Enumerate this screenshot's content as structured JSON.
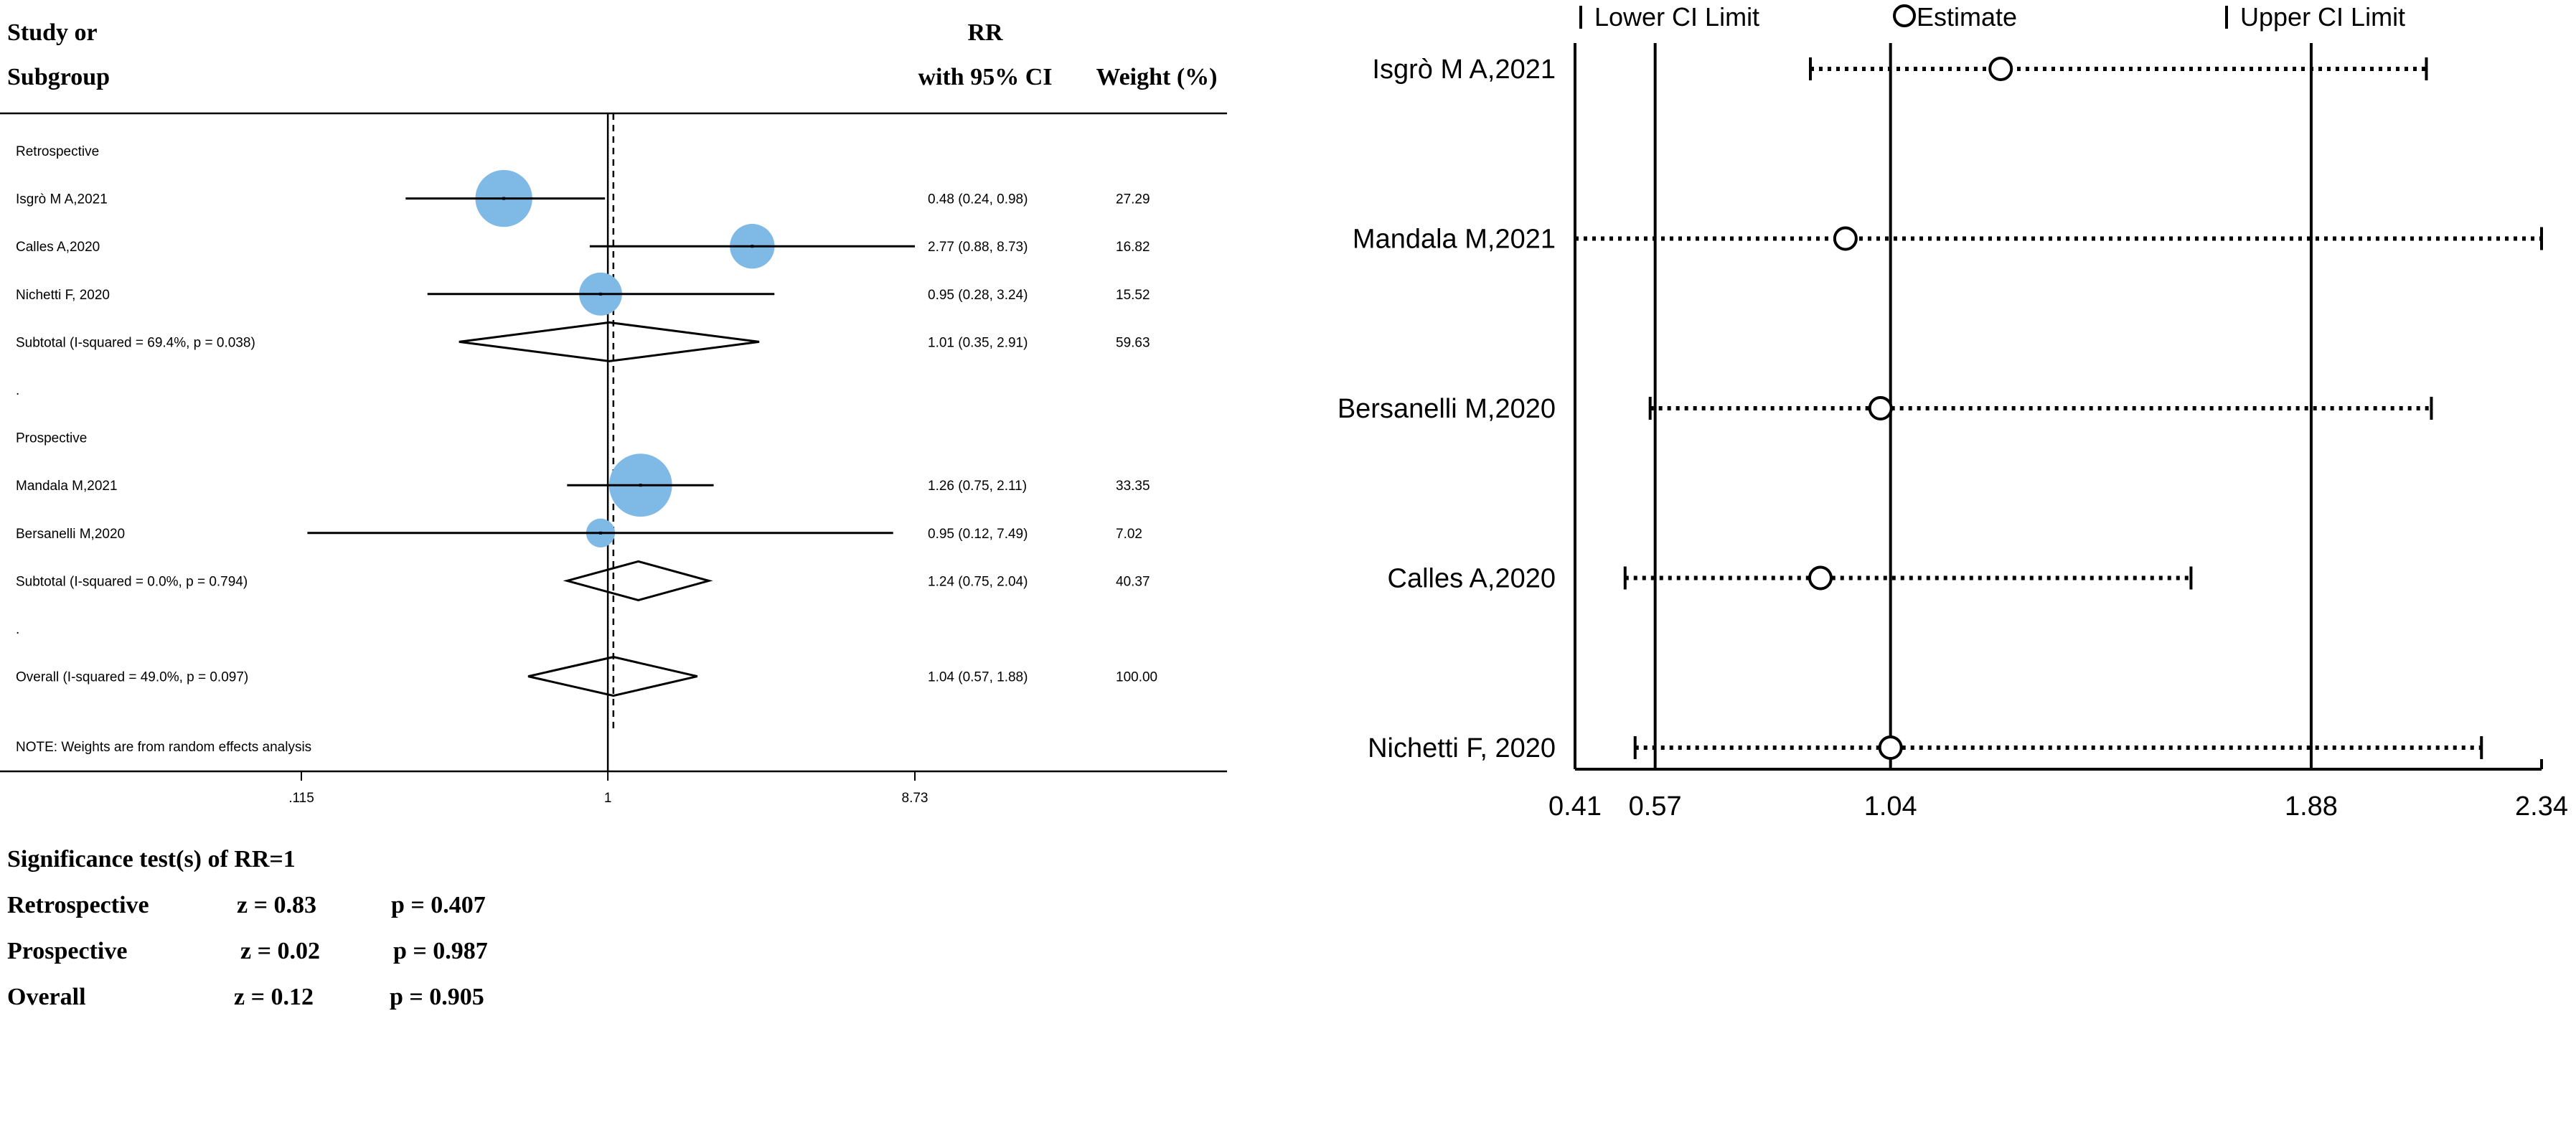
{
  "left_panel": {
    "header": {
      "study_line1": "Study or",
      "study_line2": "Subgroup",
      "rr_line1": "RR",
      "rr_line2": "with 95% CI",
      "weight": "Weight (%)"
    },
    "note": "NOTE: Weights are from random effects analysis",
    "significance": {
      "title": "Significance test(s) of RR=1",
      "rows": [
        {
          "label": "Retrospective",
          "z": "z = 0.83",
          "p": "p = 0.407"
        },
        {
          "label": "Prospective",
          "z": "z = 0.02",
          "p": "p = 0.987"
        },
        {
          "label": "Overall",
          "z": "z = 0.12",
          "p": "p = 0.905"
        }
      ]
    }
  },
  "chart_data": [
    {
      "type": "forest",
      "scale": "log",
      "xlim": [
        0.115,
        8.73
      ],
      "x_ticks": [
        {
          "value": 0.115,
          "label": ".115"
        },
        {
          "value": 1,
          "label": "1"
        },
        {
          "value": 8.73,
          "label": "8.73"
        }
      ],
      "null_value": 1,
      "overall_estimate_line": 1.04,
      "color": "#7fb9e6",
      "rows": [
        {
          "kind": "group",
          "label": "Retrospective"
        },
        {
          "kind": "study",
          "label": "Isgrò M A,2021",
          "rr": 0.48,
          "lo": 0.24,
          "hi": 0.98,
          "ci_text": "0.48 (0.24, 0.98)",
          "weight": "27.29"
        },
        {
          "kind": "study",
          "label": "Calles A,2020",
          "rr": 2.77,
          "lo": 0.88,
          "hi": 8.73,
          "ci_text": "2.77 (0.88, 8.73)",
          "weight": "16.82"
        },
        {
          "kind": "study",
          "label": "Nichetti F,  2020",
          "rr": 0.95,
          "lo": 0.28,
          "hi": 3.24,
          "ci_text": "0.95 (0.28, 3.24)",
          "weight": "15.52"
        },
        {
          "kind": "subtotal",
          "label": "Subtotal  (I-squared = 69.4%, p = 0.038)",
          "rr": 1.01,
          "lo": 0.35,
          "hi": 2.91,
          "ci_text": "1.01 (0.35, 2.91)",
          "weight": "59.63"
        },
        {
          "kind": "blank",
          "label": "."
        },
        {
          "kind": "group",
          "label": "Prospective"
        },
        {
          "kind": "study",
          "label": "Mandala M,2021",
          "rr": 1.26,
          "lo": 0.75,
          "hi": 2.11,
          "ci_text": "1.26 (0.75, 2.11)",
          "weight": "33.35"
        },
        {
          "kind": "study",
          "label": "Bersanelli M,2020",
          "rr": 0.95,
          "lo": 0.12,
          "hi": 7.49,
          "ci_text": "0.95 (0.12, 7.49)",
          "weight": "7.02"
        },
        {
          "kind": "subtotal",
          "label": "Subtotal  (I-squared = 0.0%, p = 0.794)",
          "rr": 1.24,
          "lo": 0.75,
          "hi": 2.04,
          "ci_text": "1.24 (0.75, 2.04)",
          "weight": "40.37"
        },
        {
          "kind": "blank",
          "label": "."
        },
        {
          "kind": "overall",
          "label": "Overall  (I-squared = 49.0%, p = 0.097)",
          "rr": 1.04,
          "lo": 0.57,
          "hi": 1.88,
          "ci_text": "1.04 (0.57, 1.88)",
          "weight": "100.00"
        }
      ]
    },
    {
      "type": "interval",
      "xlim": [
        0.41,
        2.34
      ],
      "x_ticks": [
        0.41,
        0.57,
        1.04,
        1.88,
        2.34
      ],
      "x_tick_labels": [
        "0.41",
        "0.57",
        "1.04",
        "1.88",
        "2.34"
      ],
      "vertical_lines": [
        0.41,
        0.57,
        1.04,
        1.88
      ],
      "legend": {
        "lower": "Lower CI Limit",
        "estimate": "Estimate",
        "upper": "Upper CI Limit"
      },
      "legend_placement": "top",
      "studies": [
        {
          "label": "Isgrò M A,2021",
          "lower": 0.88,
          "estimate": 1.26,
          "upper": 2.11
        },
        {
          "label": "Mandala M,2021",
          "lower": 0.41,
          "estimate": 0.95,
          "upper": 2.34
        },
        {
          "label": "Bersanelli M,2020",
          "lower": 0.56,
          "estimate": 1.02,
          "upper": 2.12
        },
        {
          "label": "Calles A,2020",
          "lower": 0.51,
          "estimate": 0.9,
          "upper": 1.64
        },
        {
          "label": "Nichetti F,  2020",
          "lower": 0.53,
          "estimate": 1.04,
          "upper": 2.22
        }
      ]
    }
  ]
}
